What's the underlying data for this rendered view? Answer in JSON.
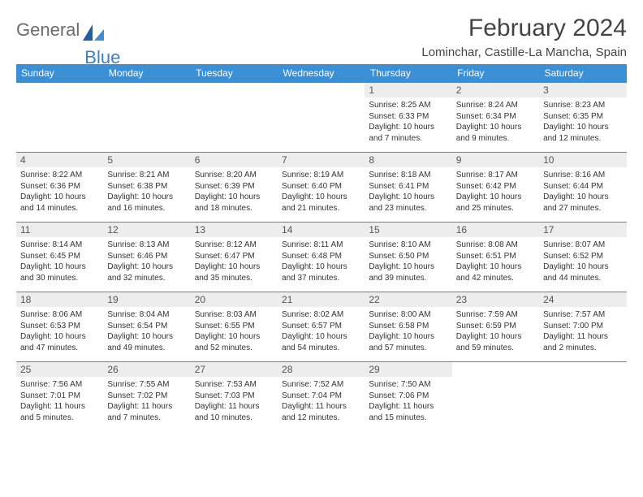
{
  "logo": {
    "text1": "General",
    "text2": "Blue"
  },
  "header": {
    "month_title": "February 2024",
    "location": "Lominchar, Castille-La Mancha, Spain"
  },
  "styling": {
    "header_bg": "#3b8fd4",
    "header_text": "#ffffff",
    "daynum_bg": "#ededed",
    "daynum_text": "#555555",
    "body_text": "#333333",
    "row_border": "#3b8fd4",
    "logo_gray": "#6b6b6b",
    "logo_blue": "#3b7fc4",
    "title_color": "#444444",
    "page_bg": "#ffffff",
    "font_family": "Arial",
    "th_fontsize": 12,
    "daynum_fontsize": 12,
    "cell_fontsize": 10,
    "title_fontsize": 30,
    "location_fontsize": 15
  },
  "weekdays": [
    "Sunday",
    "Monday",
    "Tuesday",
    "Wednesday",
    "Thursday",
    "Friday",
    "Saturday"
  ],
  "weeks": [
    [
      null,
      null,
      null,
      null,
      {
        "n": "1",
        "sr": "Sunrise: 8:25 AM",
        "ss": "Sunset: 6:33 PM",
        "dl": "Daylight: 10 hours and 7 minutes."
      },
      {
        "n": "2",
        "sr": "Sunrise: 8:24 AM",
        "ss": "Sunset: 6:34 PM",
        "dl": "Daylight: 10 hours and 9 minutes."
      },
      {
        "n": "3",
        "sr": "Sunrise: 8:23 AM",
        "ss": "Sunset: 6:35 PM",
        "dl": "Daylight: 10 hours and 12 minutes."
      }
    ],
    [
      {
        "n": "4",
        "sr": "Sunrise: 8:22 AM",
        "ss": "Sunset: 6:36 PM",
        "dl": "Daylight: 10 hours and 14 minutes."
      },
      {
        "n": "5",
        "sr": "Sunrise: 8:21 AM",
        "ss": "Sunset: 6:38 PM",
        "dl": "Daylight: 10 hours and 16 minutes."
      },
      {
        "n": "6",
        "sr": "Sunrise: 8:20 AM",
        "ss": "Sunset: 6:39 PM",
        "dl": "Daylight: 10 hours and 18 minutes."
      },
      {
        "n": "7",
        "sr": "Sunrise: 8:19 AM",
        "ss": "Sunset: 6:40 PM",
        "dl": "Daylight: 10 hours and 21 minutes."
      },
      {
        "n": "8",
        "sr": "Sunrise: 8:18 AM",
        "ss": "Sunset: 6:41 PM",
        "dl": "Daylight: 10 hours and 23 minutes."
      },
      {
        "n": "9",
        "sr": "Sunrise: 8:17 AM",
        "ss": "Sunset: 6:42 PM",
        "dl": "Daylight: 10 hours and 25 minutes."
      },
      {
        "n": "10",
        "sr": "Sunrise: 8:16 AM",
        "ss": "Sunset: 6:44 PM",
        "dl": "Daylight: 10 hours and 27 minutes."
      }
    ],
    [
      {
        "n": "11",
        "sr": "Sunrise: 8:14 AM",
        "ss": "Sunset: 6:45 PM",
        "dl": "Daylight: 10 hours and 30 minutes."
      },
      {
        "n": "12",
        "sr": "Sunrise: 8:13 AM",
        "ss": "Sunset: 6:46 PM",
        "dl": "Daylight: 10 hours and 32 minutes."
      },
      {
        "n": "13",
        "sr": "Sunrise: 8:12 AM",
        "ss": "Sunset: 6:47 PM",
        "dl": "Daylight: 10 hours and 35 minutes."
      },
      {
        "n": "14",
        "sr": "Sunrise: 8:11 AM",
        "ss": "Sunset: 6:48 PM",
        "dl": "Daylight: 10 hours and 37 minutes."
      },
      {
        "n": "15",
        "sr": "Sunrise: 8:10 AM",
        "ss": "Sunset: 6:50 PM",
        "dl": "Daylight: 10 hours and 39 minutes."
      },
      {
        "n": "16",
        "sr": "Sunrise: 8:08 AM",
        "ss": "Sunset: 6:51 PM",
        "dl": "Daylight: 10 hours and 42 minutes."
      },
      {
        "n": "17",
        "sr": "Sunrise: 8:07 AM",
        "ss": "Sunset: 6:52 PM",
        "dl": "Daylight: 10 hours and 44 minutes."
      }
    ],
    [
      {
        "n": "18",
        "sr": "Sunrise: 8:06 AM",
        "ss": "Sunset: 6:53 PM",
        "dl": "Daylight: 10 hours and 47 minutes."
      },
      {
        "n": "19",
        "sr": "Sunrise: 8:04 AM",
        "ss": "Sunset: 6:54 PM",
        "dl": "Daylight: 10 hours and 49 minutes."
      },
      {
        "n": "20",
        "sr": "Sunrise: 8:03 AM",
        "ss": "Sunset: 6:55 PM",
        "dl": "Daylight: 10 hours and 52 minutes."
      },
      {
        "n": "21",
        "sr": "Sunrise: 8:02 AM",
        "ss": "Sunset: 6:57 PM",
        "dl": "Daylight: 10 hours and 54 minutes."
      },
      {
        "n": "22",
        "sr": "Sunrise: 8:00 AM",
        "ss": "Sunset: 6:58 PM",
        "dl": "Daylight: 10 hours and 57 minutes."
      },
      {
        "n": "23",
        "sr": "Sunrise: 7:59 AM",
        "ss": "Sunset: 6:59 PM",
        "dl": "Daylight: 10 hours and 59 minutes."
      },
      {
        "n": "24",
        "sr": "Sunrise: 7:57 AM",
        "ss": "Sunset: 7:00 PM",
        "dl": "Daylight: 11 hours and 2 minutes."
      }
    ],
    [
      {
        "n": "25",
        "sr": "Sunrise: 7:56 AM",
        "ss": "Sunset: 7:01 PM",
        "dl": "Daylight: 11 hours and 5 minutes."
      },
      {
        "n": "26",
        "sr": "Sunrise: 7:55 AM",
        "ss": "Sunset: 7:02 PM",
        "dl": "Daylight: 11 hours and 7 minutes."
      },
      {
        "n": "27",
        "sr": "Sunrise: 7:53 AM",
        "ss": "Sunset: 7:03 PM",
        "dl": "Daylight: 11 hours and 10 minutes."
      },
      {
        "n": "28",
        "sr": "Sunrise: 7:52 AM",
        "ss": "Sunset: 7:04 PM",
        "dl": "Daylight: 11 hours and 12 minutes."
      },
      {
        "n": "29",
        "sr": "Sunrise: 7:50 AM",
        "ss": "Sunset: 7:06 PM",
        "dl": "Daylight: 11 hours and 15 minutes."
      },
      null,
      null
    ]
  ]
}
